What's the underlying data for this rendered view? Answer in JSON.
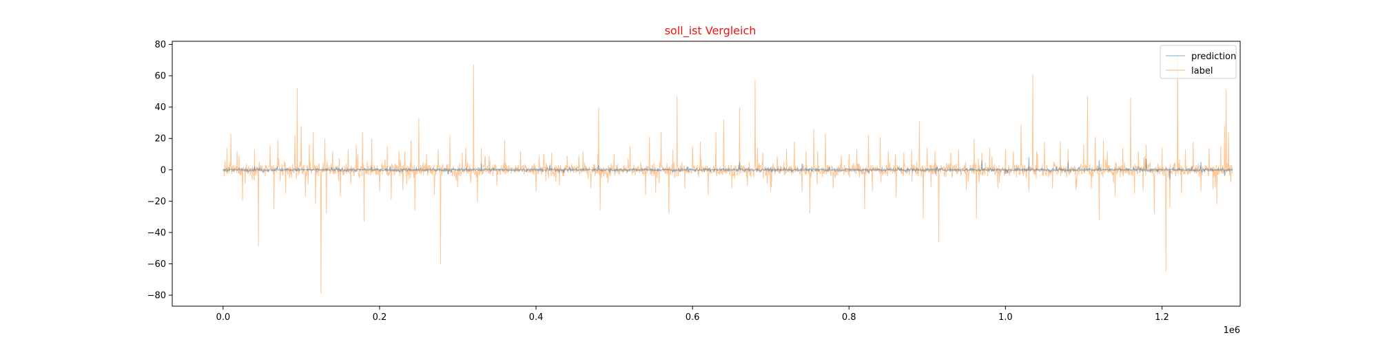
{
  "chart_data": {
    "type": "line",
    "title": "soll_ist Vergleich",
    "title_color": "#ee1111",
    "xlabel": "",
    "ylabel": "",
    "x_offset_label": "1e6",
    "xlim": [
      -0.065,
      1.3
    ],
    "ylim": [
      -87,
      82
    ],
    "x_ticks": [
      0.0,
      0.2,
      0.4,
      0.6,
      0.8,
      1.0,
      1.2
    ],
    "x_tick_labels": [
      "0.0",
      "0.2",
      "0.4",
      "0.6",
      "0.8",
      "1.0",
      "1.2"
    ],
    "y_ticks": [
      80,
      60,
      40,
      20,
      0,
      -20,
      -40,
      -60,
      -80
    ],
    "y_tick_labels": [
      "80",
      "60",
      "40",
      "20",
      "0",
      "−20",
      "−40",
      "−60",
      "−80"
    ],
    "grid": false,
    "legend_position": "top-right",
    "x_range": [
      0.0,
      1.29
    ],
    "series": [
      {
        "name": "prediction",
        "color": "#1f77b4",
        "noise_amplitude": 1.2,
        "spikes": [
          [
            0.33,
            4
          ],
          [
            0.48,
            3
          ],
          [
            0.66,
            5
          ],
          [
            0.74,
            4
          ],
          [
            0.97,
            6
          ],
          [
            1.03,
            8
          ],
          [
            1.08,
            5
          ],
          [
            1.12,
            6
          ],
          [
            1.18,
            7
          ],
          [
            1.21,
            -6
          ],
          [
            1.25,
            5
          ],
          [
            1.28,
            -4
          ]
        ]
      },
      {
        "name": "label",
        "color": "#ff7f0e",
        "noise_amplitude": 6,
        "spikes": [
          [
            0.005,
            14
          ],
          [
            0.01,
            23
          ],
          [
            0.018,
            12
          ],
          [
            0.025,
            -20
          ],
          [
            0.04,
            13
          ],
          [
            0.045,
            -49
          ],
          [
            0.06,
            16
          ],
          [
            0.065,
            -25
          ],
          [
            0.07,
            19
          ],
          [
            0.08,
            -15
          ],
          [
            0.092,
            22
          ],
          [
            0.095,
            52
          ],
          [
            0.1,
            28
          ],
          [
            0.105,
            -17
          ],
          [
            0.11,
            16
          ],
          [
            0.115,
            24
          ],
          [
            0.118,
            -22
          ],
          [
            0.125,
            -79
          ],
          [
            0.13,
            20
          ],
          [
            0.132,
            -28
          ],
          [
            0.14,
            12
          ],
          [
            0.15,
            -17
          ],
          [
            0.16,
            13
          ],
          [
            0.17,
            16
          ],
          [
            0.178,
            24
          ],
          [
            0.18,
            -33
          ],
          [
            0.19,
            20
          ],
          [
            0.2,
            -14
          ],
          [
            0.21,
            15
          ],
          [
            0.215,
            -19
          ],
          [
            0.225,
            12
          ],
          [
            0.23,
            -13
          ],
          [
            0.24,
            19
          ],
          [
            0.245,
            -26
          ],
          [
            0.25,
            33
          ],
          [
            0.26,
            10
          ],
          [
            0.27,
            -16
          ],
          [
            0.275,
            13
          ],
          [
            0.278,
            -60
          ],
          [
            0.29,
            22
          ],
          [
            0.3,
            -11
          ],
          [
            0.31,
            14
          ],
          [
            0.32,
            67
          ],
          [
            0.325,
            -21
          ],
          [
            0.33,
            14
          ],
          [
            0.34,
            9
          ],
          [
            0.35,
            -10
          ],
          [
            0.36,
            19
          ],
          [
            0.38,
            12
          ],
          [
            0.4,
            -14
          ],
          [
            0.42,
            11
          ],
          [
            0.43,
            -10
          ],
          [
            0.44,
            9
          ],
          [
            0.46,
            12
          ],
          [
            0.47,
            -12
          ],
          [
            0.48,
            40
          ],
          [
            0.482,
            -26
          ],
          [
            0.5,
            10
          ],
          [
            0.52,
            15
          ],
          [
            0.54,
            -16
          ],
          [
            0.545,
            21
          ],
          [
            0.56,
            24
          ],
          [
            0.57,
            -28
          ],
          [
            0.575,
            13
          ],
          [
            0.58,
            47
          ],
          [
            0.59,
            -12
          ],
          [
            0.6,
            15
          ],
          [
            0.61,
            18
          ],
          [
            0.62,
            -16
          ],
          [
            0.63,
            24
          ],
          [
            0.64,
            32
          ],
          [
            0.65,
            -12
          ],
          [
            0.66,
            40
          ],
          [
            0.67,
            -10
          ],
          [
            0.68,
            57
          ],
          [
            0.69,
            11
          ],
          [
            0.7,
            -14
          ],
          [
            0.72,
            13
          ],
          [
            0.73,
            18
          ],
          [
            0.74,
            -14
          ],
          [
            0.745,
            12
          ],
          [
            0.75,
            -28
          ],
          [
            0.755,
            26
          ],
          [
            0.76,
            12
          ],
          [
            0.77,
            23
          ],
          [
            0.78,
            -12
          ],
          [
            0.79,
            9
          ],
          [
            0.8,
            10
          ],
          [
            0.81,
            13
          ],
          [
            0.82,
            -25
          ],
          [
            0.825,
            22
          ],
          [
            0.83,
            -14
          ],
          [
            0.84,
            21
          ],
          [
            0.85,
            12
          ],
          [
            0.86,
            -17
          ],
          [
            0.87,
            11
          ],
          [
            0.88,
            13
          ],
          [
            0.89,
            31
          ],
          [
            0.895,
            -31
          ],
          [
            0.9,
            14
          ],
          [
            0.905,
            -11
          ],
          [
            0.91,
            12
          ],
          [
            0.915,
            -46
          ],
          [
            0.93,
            11
          ],
          [
            0.94,
            13
          ],
          [
            0.95,
            -13
          ],
          [
            0.96,
            20
          ],
          [
            0.963,
            -31
          ],
          [
            0.97,
            11
          ],
          [
            0.98,
            14
          ],
          [
            0.99,
            -12
          ],
          [
            1.0,
            13
          ],
          [
            1.01,
            12
          ],
          [
            1.02,
            29
          ],
          [
            1.03,
            -14
          ],
          [
            1.035,
            61
          ],
          [
            1.04,
            12
          ],
          [
            1.05,
            18
          ],
          [
            1.06,
            -12
          ],
          [
            1.07,
            18
          ],
          [
            1.08,
            13
          ],
          [
            1.09,
            -13
          ],
          [
            1.1,
            16
          ],
          [
            1.105,
            47
          ],
          [
            1.11,
            -12
          ],
          [
            1.115,
            21
          ],
          [
            1.12,
            -32
          ],
          [
            1.125,
            19
          ],
          [
            1.13,
            12
          ],
          [
            1.14,
            -17
          ],
          [
            1.15,
            14
          ],
          [
            1.16,
            46
          ],
          [
            1.165,
            -15
          ],
          [
            1.17,
            12
          ],
          [
            1.18,
            16
          ],
          [
            1.19,
            -28
          ],
          [
            1.2,
            14
          ],
          [
            1.205,
            -65
          ],
          [
            1.21,
            -24
          ],
          [
            1.22,
            74
          ],
          [
            1.225,
            -15
          ],
          [
            1.23,
            13
          ],
          [
            1.24,
            18
          ],
          [
            1.25,
            -14
          ],
          [
            1.26,
            14
          ],
          [
            1.27,
            -22
          ],
          [
            1.275,
            15
          ],
          [
            1.28,
            28
          ],
          [
            1.282,
            51
          ],
          [
            1.285,
            24
          ],
          [
            1.288,
            -8
          ]
        ]
      }
    ]
  }
}
